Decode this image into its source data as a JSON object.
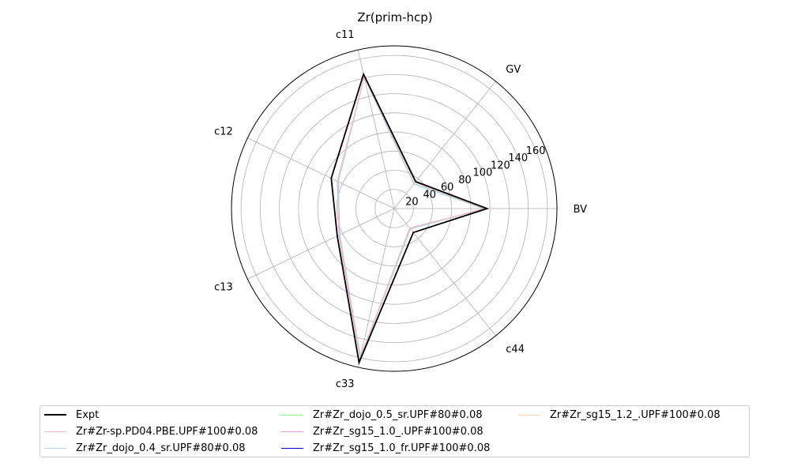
{
  "chart_data": {
    "type": "radar",
    "title": "Zr(prim-hcp)",
    "axes": [
      "BV",
      "GV",
      "c11",
      "c12",
      "c13",
      "c33",
      "c44"
    ],
    "radial_ticks": [
      20,
      40,
      60,
      80,
      100,
      120,
      140,
      160
    ],
    "rlim": [
      0,
      170
    ],
    "grid": true,
    "legend_position": "bottom",
    "legend_columns": 3,
    "series": [
      {
        "name": "Expt",
        "color": "#000000",
        "values": [
          97,
          36,
          144,
          73,
          66,
          165,
          32
        ]
      },
      {
        "name": "Zr#Zr-sp.PD04.PBE.UPF#100#0.08",
        "color": "#ffb6c1",
        "values": [
          95,
          35,
          141,
          66,
          64,
          158,
          26
        ]
      },
      {
        "name": "Zr#Zr_dojo_0.4_sr.UPF#80#0.08",
        "color": "#add8e6",
        "values": [
          94,
          33,
          141,
          65,
          63,
          160,
          27
        ]
      },
      {
        "name": "Zr#Zr_dojo_0.5_sr.UPF#80#0.08",
        "color": "#90ee90",
        "values": [
          94,
          33,
          141,
          65,
          63,
          160,
          27
        ]
      },
      {
        "name": "Zr#Zr_sg15_1.0_.UPF#100#0.08",
        "color": "#dda0dd",
        "values": [
          94,
          33,
          141,
          65,
          64,
          160,
          27
        ]
      },
      {
        "name": "Zr#Zr_sg15_1.0_fr.UPF#100#0.08",
        "color": "#0000cd",
        "values": [
          94,
          33,
          141,
          65,
          64,
          160,
          27
        ]
      },
      {
        "name": "Zr#Zr_sg15_1.2_.UPF#100#0.08",
        "color": "#ffdab9",
        "values": [
          94,
          33,
          141,
          65,
          64,
          160,
          27
        ]
      }
    ]
  }
}
